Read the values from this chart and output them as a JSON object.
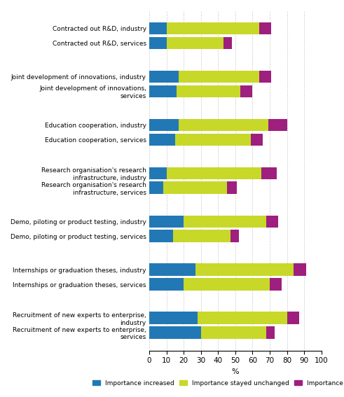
{
  "categories": [
    "Contracted out R&D, industry",
    "Contracted out R&D, services",
    "Joint development of innovations, industry",
    "Joint development of innovations,\nservices",
    "Education cooperation, industry",
    "Education cooperation, services",
    "Research organisation's research\ninfrastructure, industry",
    "Research organisation's research\ninfrastructure, services",
    "Demo, piloting or product testing, industry",
    "Demo, piloting or product testing, services",
    "Internships or graduation theses, industry",
    "Internships or graduation theses, services",
    "Recruitment of new experts to enterprise,\nindustry",
    "Recruitment of new experts to enterprise,\nservices"
  ],
  "increased": [
    10,
    10,
    17,
    16,
    17,
    15,
    10,
    8,
    20,
    14,
    27,
    20,
    28,
    30
  ],
  "unchanged": [
    54,
    33,
    47,
    37,
    52,
    44,
    55,
    37,
    48,
    33,
    57,
    50,
    52,
    38
  ],
  "decreased": [
    7,
    5,
    7,
    7,
    11,
    7,
    9,
    6,
    7,
    5,
    7,
    7,
    7,
    5
  ],
  "color_increased": "#2278b5",
  "color_unchanged": "#c7d829",
  "color_decreased": "#9e1f7e",
  "xlabel": "%",
  "xlim": [
    0,
    100
  ],
  "xticks": [
    0,
    10,
    20,
    30,
    40,
    50,
    60,
    70,
    80,
    90,
    100
  ],
  "legend_labels": [
    "Importance increased",
    "Importance stayed unchanged",
    "Importance decreased"
  ],
  "background_color": "#ffffff"
}
